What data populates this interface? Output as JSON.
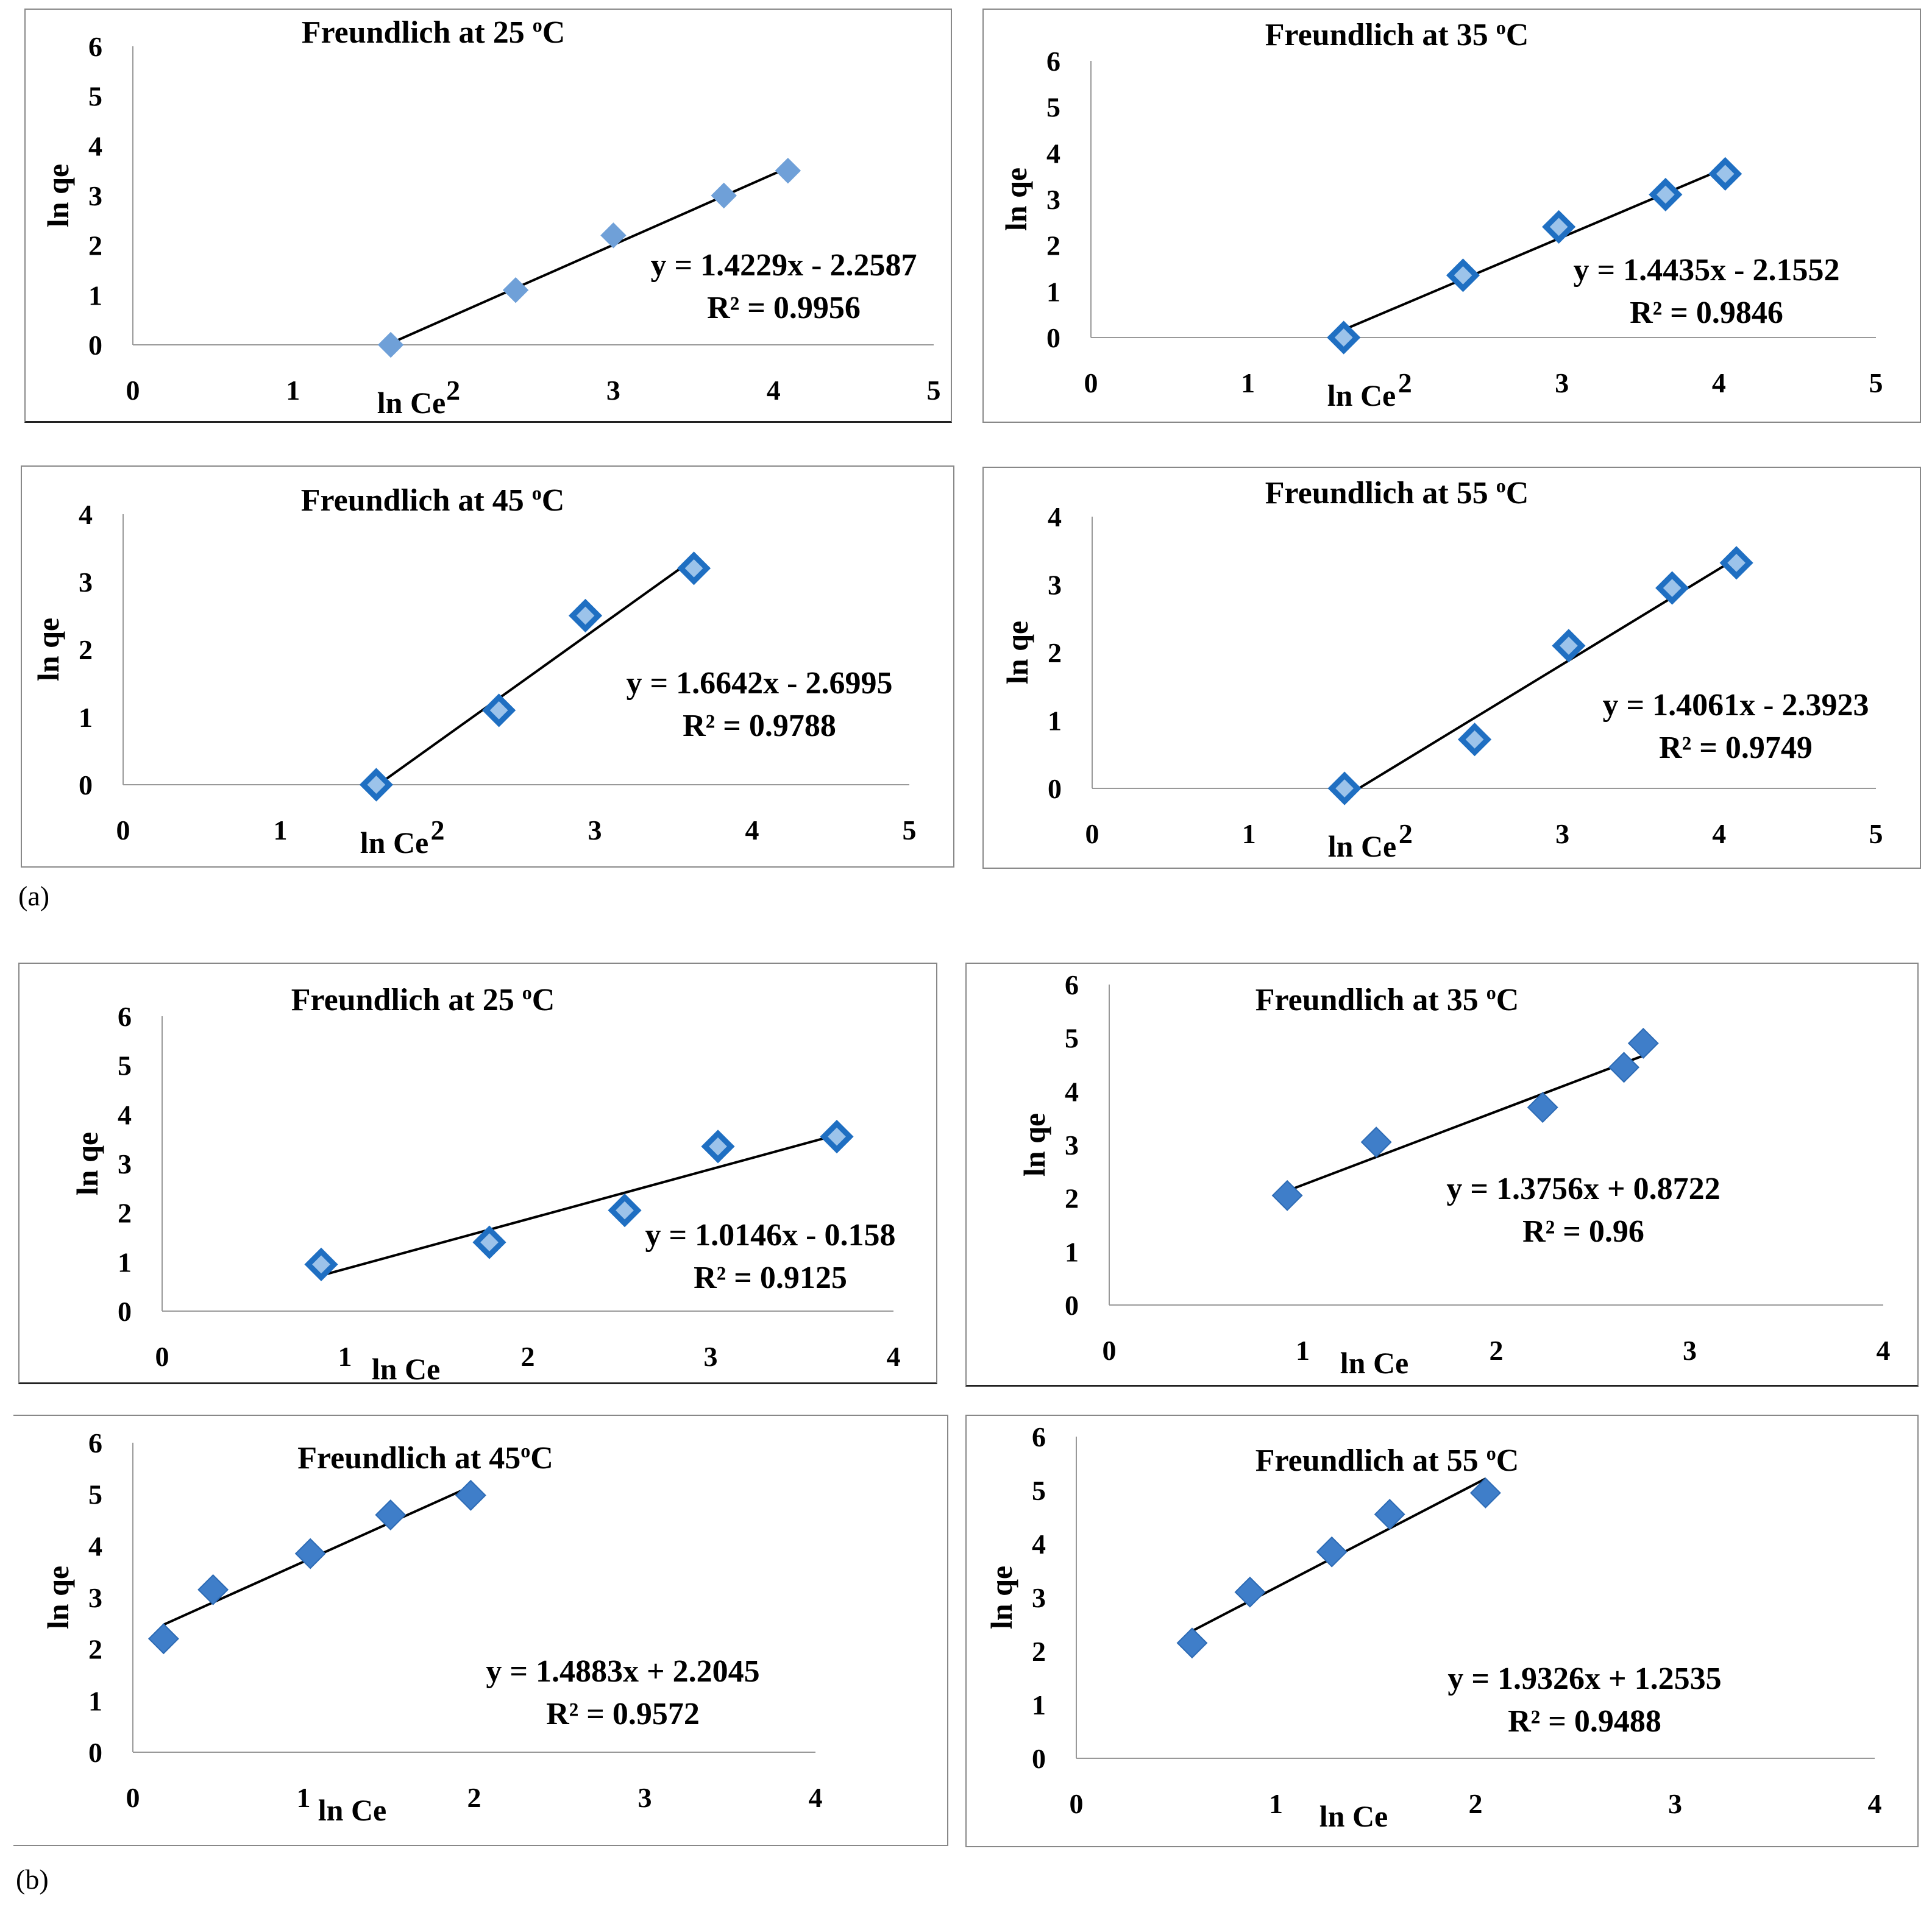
{
  "figure": {
    "panel_labels": [
      "(a)",
      "(b)"
    ]
  },
  "colors": {
    "marker_light": "#6fa0d8",
    "marker_dark": "#1f6fc2",
    "marker_dark_inner": "#9cc3ea",
    "trendline": "#000000",
    "axis": "#999999",
    "frame": "#555555"
  },
  "chart_data": [
    {
      "type": "scatter",
      "group": "(a)",
      "title": "Freundlich at 25 ",
      "title_sup": "o",
      "title_unit": "C",
      "xlabel": "ln Ce",
      "ylabel": "ln qe",
      "xlim": [
        0,
        5
      ],
      "ylim": [
        0,
        6
      ],
      "xticks": [
        0,
        1,
        2,
        3,
        4,
        5
      ],
      "yticks": [
        0,
        1,
        2,
        3,
        4,
        5,
        6
      ],
      "marker": "light",
      "x": [
        1.61,
        2.39,
        3.0,
        3.69,
        4.09
      ],
      "y": [
        0.0,
        1.1,
        2.2,
        3.0,
        3.5
      ],
      "trendline": {
        "slope": 1.4229,
        "intercept": -2.2587,
        "x_range": [
          1.61,
          4.09
        ]
      },
      "equation": "y = 1.4229x - 2.2587",
      "r2": "R² = 0.9956"
    },
    {
      "type": "scatter",
      "group": "(a)",
      "title": "Freundlich at 35 ",
      "title_sup": "o",
      "title_unit": "C",
      "xlabel": "ln Ce",
      "ylabel": "ln qe",
      "xlim": [
        0,
        5
      ],
      "ylim": [
        0,
        6
      ],
      "xticks": [
        0,
        1,
        2,
        3,
        4,
        5
      ],
      "yticks": [
        0,
        1,
        2,
        3,
        4,
        5,
        6
      ],
      "marker": "dark",
      "x": [
        1.61,
        2.37,
        2.98,
        3.66,
        4.04
      ],
      "y": [
        0.0,
        1.35,
        2.4,
        3.1,
        3.55
      ],
      "trendline": {
        "slope": 1.4435,
        "intercept": -2.1552,
        "x_range": [
          1.61,
          4.04
        ]
      },
      "equation": "y = 1.4435x - 2.1552",
      "r2": "R² = 0.9846"
    },
    {
      "type": "scatter",
      "group": "(a)",
      "title": "Freundlich at 45 ",
      "title_sup": "o",
      "title_unit": "C",
      "xlabel": "ln Ce",
      "ylabel": "ln qe",
      "xlim": [
        0,
        5
      ],
      "ylim": [
        0,
        4
      ],
      "xticks": [
        0,
        1,
        2,
        3,
        4,
        5
      ],
      "yticks": [
        0,
        1,
        2,
        3,
        4
      ],
      "marker": "dark",
      "x": [
        1.61,
        2.39,
        2.94,
        3.63
      ],
      "y": [
        0.0,
        1.1,
        2.5,
        3.2
      ],
      "trendline": {
        "slope": 1.6642,
        "intercept": -2.6995,
        "x_range": [
          1.61,
          3.63
        ]
      },
      "equation": "y = 1.6642x - 2.6995",
      "r2": "R² = 0.9788"
    },
    {
      "type": "scatter",
      "group": "(a)",
      "title": "Freundlich at 55 ",
      "title_sup": "o",
      "title_unit": "C",
      "xlabel": "ln Ce",
      "ylabel": "ln qe",
      "xlim": [
        0,
        5
      ],
      "ylim": [
        0,
        4
      ],
      "xticks": [
        0,
        1,
        2,
        3,
        4,
        5
      ],
      "yticks": [
        0,
        1,
        2,
        3,
        4
      ],
      "marker": "dark",
      "x": [
        1.61,
        2.44,
        3.04,
        3.7,
        4.11
      ],
      "y": [
        0.0,
        0.72,
        2.1,
        2.95,
        3.32
      ],
      "trendline": {
        "slope": 1.4061,
        "intercept": -2.3923,
        "x_range": [
          1.7,
          4.11
        ]
      },
      "equation": "y = 1.4061x - 2.3923",
      "r2": "R² = 0.9749"
    },
    {
      "type": "scatter",
      "group": "(b)",
      "title": "Freundlich at 25 ",
      "title_sup": "o",
      "title_unit": "C",
      "xlabel": "ln Ce",
      "ylabel": "ln qe",
      "xlim": [
        0,
        4
      ],
      "ylim": [
        0,
        6
      ],
      "xticks": [
        0,
        1,
        2,
        3,
        4
      ],
      "yticks": [
        0,
        1,
        2,
        3,
        4,
        5,
        6
      ],
      "marker": "dark",
      "x": [
        0.87,
        1.79,
        2.53,
        3.04,
        3.69
      ],
      "y": [
        0.95,
        1.4,
        2.05,
        3.35,
        3.55
      ],
      "trendline": {
        "slope": 1.0146,
        "intercept": -0.158,
        "x_range": [
          0.87,
          3.69
        ]
      },
      "equation": "y = 1.0146x - 0.158",
      "r2": "R² = 0.9125"
    },
    {
      "type": "scatter",
      "group": "(b)",
      "title": "Freundlich at 35 ",
      "title_sup": "o",
      "title_unit": "C",
      "xlabel": "ln Ce",
      "ylabel": "ln qe",
      "xlim": [
        0,
        4
      ],
      "ylim": [
        0,
        6
      ],
      "xticks": [
        0,
        1,
        2,
        3,
        4
      ],
      "yticks": [
        0,
        1,
        2,
        3,
        4,
        5,
        6
      ],
      "marker": "mid",
      "x": [
        0.92,
        1.38,
        2.24,
        2.66,
        2.76
      ],
      "y": [
        2.05,
        3.05,
        3.7,
        4.45,
        4.9
      ],
      "trendline": {
        "slope": 1.3756,
        "intercept": 0.8722,
        "x_range": [
          0.92,
          2.76
        ]
      },
      "equation": "y = 1.3756x + 0.8722",
      "r2": "R² = 0.96"
    },
    {
      "type": "scatter",
      "group": "(b)",
      "title": "Freundlich at 45",
      "title_sup": "o",
      "title_unit": "C",
      "xlabel": "ln Ce",
      "ylabel": "ln qe",
      "xlim": [
        0,
        4
      ],
      "ylim": [
        0,
        6
      ],
      "xticks": [
        0,
        1,
        2,
        3,
        4
      ],
      "yticks": [
        0,
        1,
        2,
        3,
        4,
        5,
        6
      ],
      "marker": "mid",
      "x": [
        0.18,
        0.47,
        1.04,
        1.51,
        1.98
      ],
      "y": [
        2.2,
        3.15,
        3.85,
        4.6,
        4.98
      ],
      "trendline": {
        "slope": 1.4883,
        "intercept": 2.2045,
        "x_range": [
          0.18,
          1.98
        ]
      },
      "equation": "y = 1.4883x + 2.2045",
      "r2": "R² = 0.9572"
    },
    {
      "type": "scatter",
      "group": "(b)",
      "title": "Freundlich at 55 ",
      "title_sup": "o",
      "title_unit": "C",
      "xlabel": "ln Ce",
      "ylabel": "ln qe",
      "xlim": [
        0,
        4
      ],
      "ylim": [
        0,
        6
      ],
      "xticks": [
        0,
        1,
        2,
        3,
        4
      ],
      "yticks": [
        0,
        1,
        2,
        3,
        4,
        5,
        6
      ],
      "marker": "mid",
      "x": [
        0.58,
        0.87,
        1.28,
        1.57,
        2.05
      ],
      "y": [
        2.15,
        3.1,
        3.85,
        4.55,
        4.95
      ],
      "trendline": {
        "slope": 1.9326,
        "intercept": 1.2535,
        "x_range": [
          0.58,
          2.05
        ]
      },
      "equation": "y = 1.9326x + 1.2535",
      "r2": "R² = 0.9488"
    }
  ]
}
